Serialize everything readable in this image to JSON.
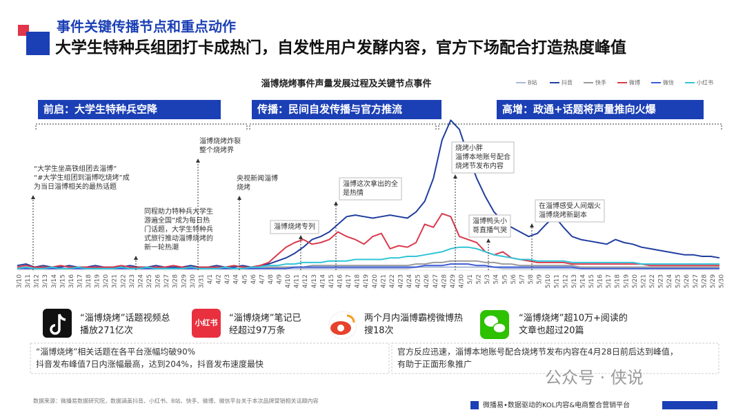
{
  "header": {
    "subtitle": "事件关键传播节点和重点动作",
    "title": "大学生特种兵组团打卡成热门，自发性用户发酵内容，官方下场配合打造热度峰值"
  },
  "chart_data": {
    "type": "line",
    "title": "淄博烧烤事件声量发展过程及关键节点事件",
    "categories": [
      "3/10",
      "3/11",
      "3/12",
      "3/13",
      "3/14",
      "3/15",
      "3/16",
      "3/17",
      "3/18",
      "3/19",
      "3/20",
      "3/21",
      "3/22",
      "3/23",
      "3/24",
      "3/25",
      "3/26",
      "3/27",
      "3/28",
      "3/29",
      "3/30",
      "3/31",
      "4/1",
      "4/2",
      "4/3",
      "4/4",
      "4/5",
      "4/6",
      "4/7",
      "4/8",
      "4/9",
      "4/10",
      "4/11",
      "4/12",
      "4/13",
      "4/14",
      "4/15",
      "4/16",
      "4/17",
      "4/18",
      "4/19",
      "4/20",
      "4/21",
      "4/22",
      "4/23",
      "4/24",
      "4/25",
      "4/26",
      "4/27",
      "4/28",
      "4/29",
      "4/30",
      "5/1",
      "5/2",
      "5/3",
      "5/4",
      "5/5",
      "5/6",
      "5/7",
      "5/8",
      "5/9",
      "5/10",
      "5/11",
      "5/12",
      "5/13",
      "5/14",
      "5/15",
      "5/16",
      "5/17",
      "5/18",
      "5/19",
      "5/20",
      "5/21",
      "5/22",
      "5/23",
      "5/24",
      "5/25",
      "5/26",
      "5/27",
      "5/28",
      "5/29",
      "5/30"
    ],
    "ylim": [
      0,
      100
    ],
    "series": [
      {
        "name": "B站",
        "color": "#a9b8d8",
        "values": [
          1,
          1,
          1,
          1,
          1,
          1,
          1,
          1,
          1,
          1,
          1,
          1,
          1,
          1,
          1,
          1,
          1,
          1,
          1,
          1,
          1,
          1,
          1,
          1,
          1,
          1,
          1,
          1,
          1,
          1,
          1,
          1,
          1,
          1,
          1,
          1,
          1,
          1,
          1,
          1,
          1,
          1,
          1,
          1,
          1,
          1,
          2,
          2,
          2,
          2,
          2,
          2,
          2,
          2,
          2,
          2,
          1,
          1,
          1,
          1,
          1,
          1,
          1,
          1,
          1,
          1,
          1,
          1,
          1,
          1,
          1,
          1,
          1,
          1,
          1,
          1,
          1,
          1,
          1,
          1,
          1,
          1
        ]
      },
      {
        "name": "抖音",
        "color": "#1f3d9e",
        "values": [
          3,
          4,
          2,
          3,
          2,
          2,
          3,
          2,
          2,
          3,
          2,
          2,
          2,
          3,
          2,
          2,
          3,
          2,
          2,
          2,
          3,
          2,
          2,
          3,
          2,
          2,
          3,
          2,
          3,
          4,
          6,
          8,
          11,
          15,
          20,
          22,
          25,
          30,
          35,
          36,
          35,
          34,
          35,
          36,
          35,
          34,
          38,
          45,
          60,
          85,
          98,
          92,
          75,
          60,
          48,
          38,
          32,
          28,
          25,
          22,
          24,
          30,
          35,
          28,
          22,
          20,
          19,
          18,
          17,
          20,
          18,
          17,
          15,
          14,
          13,
          12,
          11,
          10,
          10,
          9,
          9,
          8
        ]
      },
      {
        "name": "快手",
        "color": "#9a9a9a",
        "values": [
          1,
          1,
          1,
          1,
          1,
          1,
          1,
          1,
          1,
          1,
          1,
          1,
          1,
          1,
          1,
          1,
          1,
          1,
          1,
          1,
          1,
          1,
          1,
          1,
          1,
          1,
          1,
          1,
          1,
          2,
          2,
          2,
          2,
          2,
          3,
          3,
          3,
          3,
          3,
          3,
          3,
          3,
          3,
          3,
          3,
          3,
          4,
          4,
          5,
          5,
          6,
          6,
          6,
          6,
          5,
          5,
          4,
          4,
          3,
          3,
          3,
          3,
          3,
          3,
          3,
          2,
          2,
          2,
          2,
          2,
          2,
          2,
          2,
          2,
          2,
          2,
          2,
          2,
          2,
          2,
          2,
          2
        ]
      },
      {
        "name": "微博",
        "color": "#d9394c",
        "values": [
          2,
          3,
          2,
          2,
          2,
          3,
          2,
          2,
          2,
          2,
          2,
          2,
          3,
          2,
          2,
          2,
          2,
          2,
          3,
          2,
          2,
          2,
          2,
          2,
          2,
          3,
          2,
          2,
          3,
          5,
          10,
          15,
          18,
          20,
          17,
          18,
          20,
          25,
          22,
          20,
          17,
          22,
          24,
          14,
          16,
          15,
          18,
          30,
          28,
          37,
          35,
          22,
          20,
          18,
          12,
          10,
          12,
          8,
          7,
          6,
          5,
          5,
          5,
          5,
          4,
          4,
          4,
          4,
          4,
          4,
          4,
          4,
          4,
          3,
          3,
          3,
          3,
          3,
          3,
          3,
          3,
          3
        ]
      },
      {
        "name": "微信",
        "color": "#3b5bd6",
        "values": [
          1,
          1,
          1,
          1,
          1,
          1,
          1,
          1,
          1,
          1,
          1,
          1,
          1,
          1,
          1,
          1,
          1,
          1,
          1,
          1,
          1,
          1,
          1,
          1,
          1,
          1,
          1,
          1,
          1,
          1,
          1,
          1,
          2,
          2,
          2,
          2,
          2,
          2,
          2,
          2,
          2,
          2,
          2,
          2,
          2,
          2,
          2,
          3,
          3,
          3,
          4,
          4,
          4,
          3,
          3,
          2,
          2,
          2,
          2,
          2,
          2,
          2,
          2,
          2,
          2,
          1,
          1,
          1,
          1,
          1,
          1,
          1,
          1,
          1,
          1,
          1,
          1,
          1,
          1,
          1,
          1,
          1
        ]
      },
      {
        "name": "小红书",
        "color": "#2ec4d6",
        "values": [
          1,
          2,
          1,
          1,
          2,
          1,
          1,
          2,
          1,
          1,
          1,
          1,
          2,
          1,
          1,
          2,
          1,
          1,
          1,
          1,
          2,
          1,
          1,
          1,
          2,
          1,
          1,
          2,
          2,
          3,
          3,
          4,
          4,
          5,
          5,
          5,
          6,
          6,
          6,
          7,
          7,
          7,
          7,
          8,
          8,
          9,
          9,
          10,
          11,
          12,
          14,
          15,
          15,
          14,
          12,
          10,
          9,
          8,
          7,
          7,
          6,
          6,
          6,
          6,
          5,
          5,
          5,
          5,
          5,
          5,
          5,
          5,
          4,
          4,
          4,
          4,
          4,
          4,
          4,
          4,
          4,
          4
        ]
      }
    ]
  },
  "phases": [
    "前启：大学生特种兵空降",
    "传播：民间自发传播与官方推流",
    "高增：政通+话题将声量推向火爆"
  ],
  "annotations": [
    {
      "lines": [
        "“大学生坐高铁组团去淄博”",
        "“#大学生组团到淄博吃烧烤”成",
        "为当日淄博相关的最热话题"
      ]
    },
    {
      "lines": [
        "同程助力特种兵大学生",
        "游遍全国”成为每日热",
        "门话题，大学生特种兵",
        "式旅行推动淄博烧烤的",
        "新一轮热潮"
      ]
    },
    {
      "lines": [
        "淄博烧烤炸裂",
        "整个烧烤界"
      ]
    },
    {
      "lines": [
        "央视新闻淄博",
        "烧烤"
      ]
    },
    {
      "lines": [
        "淄博烧烤专列"
      ]
    },
    {
      "lines": [
        "淄博这次拿出的全",
        "是热情"
      ]
    },
    {
      "lines": [
        "烧烤小胖",
        "淄博本地账号配合",
        "烧烤节发布内容"
      ]
    },
    {
      "lines": [
        "淄博鸭头小",
        "哥直播气哭"
      ]
    },
    {
      "lines": [
        "在淄博感受人间烟火",
        "淄博烧烤新副本"
      ]
    }
  ],
  "stats": [
    {
      "lines": [
        "“淄博烧烤”话题视频总",
        "播放271亿次"
      ]
    },
    {
      "icon_text": "小红书",
      "lines": [
        "“淄博烧烤”笔记已",
        "经超过97万条"
      ]
    },
    {
      "lines": [
        "两个月内淄博霸榜微博热",
        "搜18次"
      ]
    },
    {
      "lines": [
        "“淄博烧烤”超10万+阅读的",
        "文章也超过20篇"
      ]
    }
  ],
  "notes": [
    {
      "lines": [
        "“淄博烧烤”相关话题在各平台涨幅均破90%",
        "抖音发布峰值7日内涨幅最高，达到204%，抖音发布速度最快"
      ]
    },
    {
      "lines": [
        "官方反应迅速，淄博本地账号配合烧烤节发布内容在4月28日前后达到峰值，",
        "有助于正面形象推广"
      ]
    }
  ],
  "footer": {
    "source": "数据来源：微播易数据研究院，数据涵盖抖音、小红书、B站、快手、微博、微信平台关于本次品牌营销相关话题内容",
    "brand": "微播易•数据驱动的KOL内容&电商整合营销平台",
    "watermark": "公众号 · 侠说"
  }
}
